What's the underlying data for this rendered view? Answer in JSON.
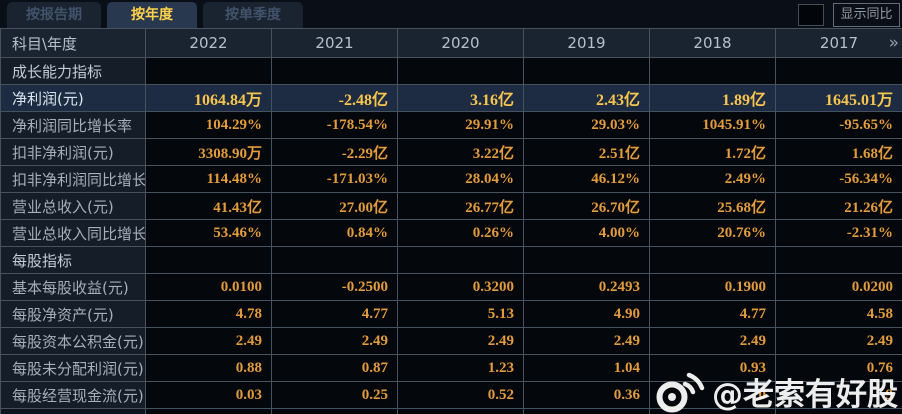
{
  "tabs": [
    {
      "label": "按报告期",
      "active": false
    },
    {
      "label": "按年度",
      "active": true
    },
    {
      "label": "按单季度",
      "active": false
    }
  ],
  "controls": {
    "show_yoy_label": "显示同比",
    "checkbox_checked": false
  },
  "table": {
    "corner_label": "科目\\年度",
    "years": [
      "2022",
      "2021",
      "2020",
      "2019",
      "2018",
      "2017"
    ],
    "more_icon": "»",
    "rows": [
      {
        "type": "section",
        "label": "成长能力指标"
      },
      {
        "type": "data",
        "label": "净利润(元)",
        "highlight": true,
        "values": [
          "1064.84万",
          "-2.48亿",
          "3.16亿",
          "2.43亿",
          "1.89亿",
          "1645.01万"
        ]
      },
      {
        "type": "data",
        "label": "净利润同比增长率",
        "values": [
          "104.29%",
          "-178.54%",
          "29.91%",
          "29.03%",
          "1045.91%",
          "-95.65%"
        ]
      },
      {
        "type": "data",
        "label": "扣非净利润(元)",
        "values": [
          "3308.90万",
          "-2.29亿",
          "3.22亿",
          "2.51亿",
          "1.72亿",
          "1.68亿"
        ]
      },
      {
        "type": "data",
        "label": "扣非净利润同比增长率",
        "values": [
          "114.48%",
          "-171.03%",
          "28.04%",
          "46.12%",
          "2.49%",
          "-56.34%"
        ]
      },
      {
        "type": "data",
        "label": "营业总收入(元)",
        "values": [
          "41.43亿",
          "27.00亿",
          "26.77亿",
          "26.70亿",
          "25.68亿",
          "21.26亿"
        ]
      },
      {
        "type": "data",
        "label": "营业总收入同比增长率",
        "values": [
          "53.46%",
          "0.84%",
          "0.26%",
          "4.00%",
          "20.76%",
          "-2.31%"
        ]
      },
      {
        "type": "section",
        "label": "每股指标"
      },
      {
        "type": "data",
        "label": "基本每股收益(元)",
        "values": [
          "0.0100",
          "-0.2500",
          "0.3200",
          "0.2493",
          "0.1900",
          "0.0200"
        ]
      },
      {
        "type": "data",
        "label": "每股净资产(元)",
        "values": [
          "4.78",
          "4.77",
          "5.13",
          "4.90",
          "4.77",
          "4.58"
        ]
      },
      {
        "type": "data",
        "label": "每股资本公积金(元)",
        "values": [
          "2.49",
          "2.49",
          "2.49",
          "2.49",
          "2.49",
          "2.49"
        ]
      },
      {
        "type": "data",
        "label": "每股未分配利润(元)",
        "values": [
          "0.88",
          "0.87",
          "1.23",
          "1.04",
          "0.93",
          "0.76"
        ]
      },
      {
        "type": "data",
        "label": "每股经营现金流(元)",
        "values": [
          "0.03",
          "0.25",
          "0.52",
          "0.36",
          "0",
          "9"
        ]
      }
    ]
  },
  "watermark": {
    "icon": "weibo-icon",
    "text": "@老索有好股"
  },
  "colors": {
    "accent_gold": "#ffd24a",
    "value_orange": "#e29c3d",
    "highlight_row_bg": "#1d2c43",
    "header_bg": "#1a2431",
    "label_bg": "#141d28",
    "grid_line": "#46535f"
  }
}
